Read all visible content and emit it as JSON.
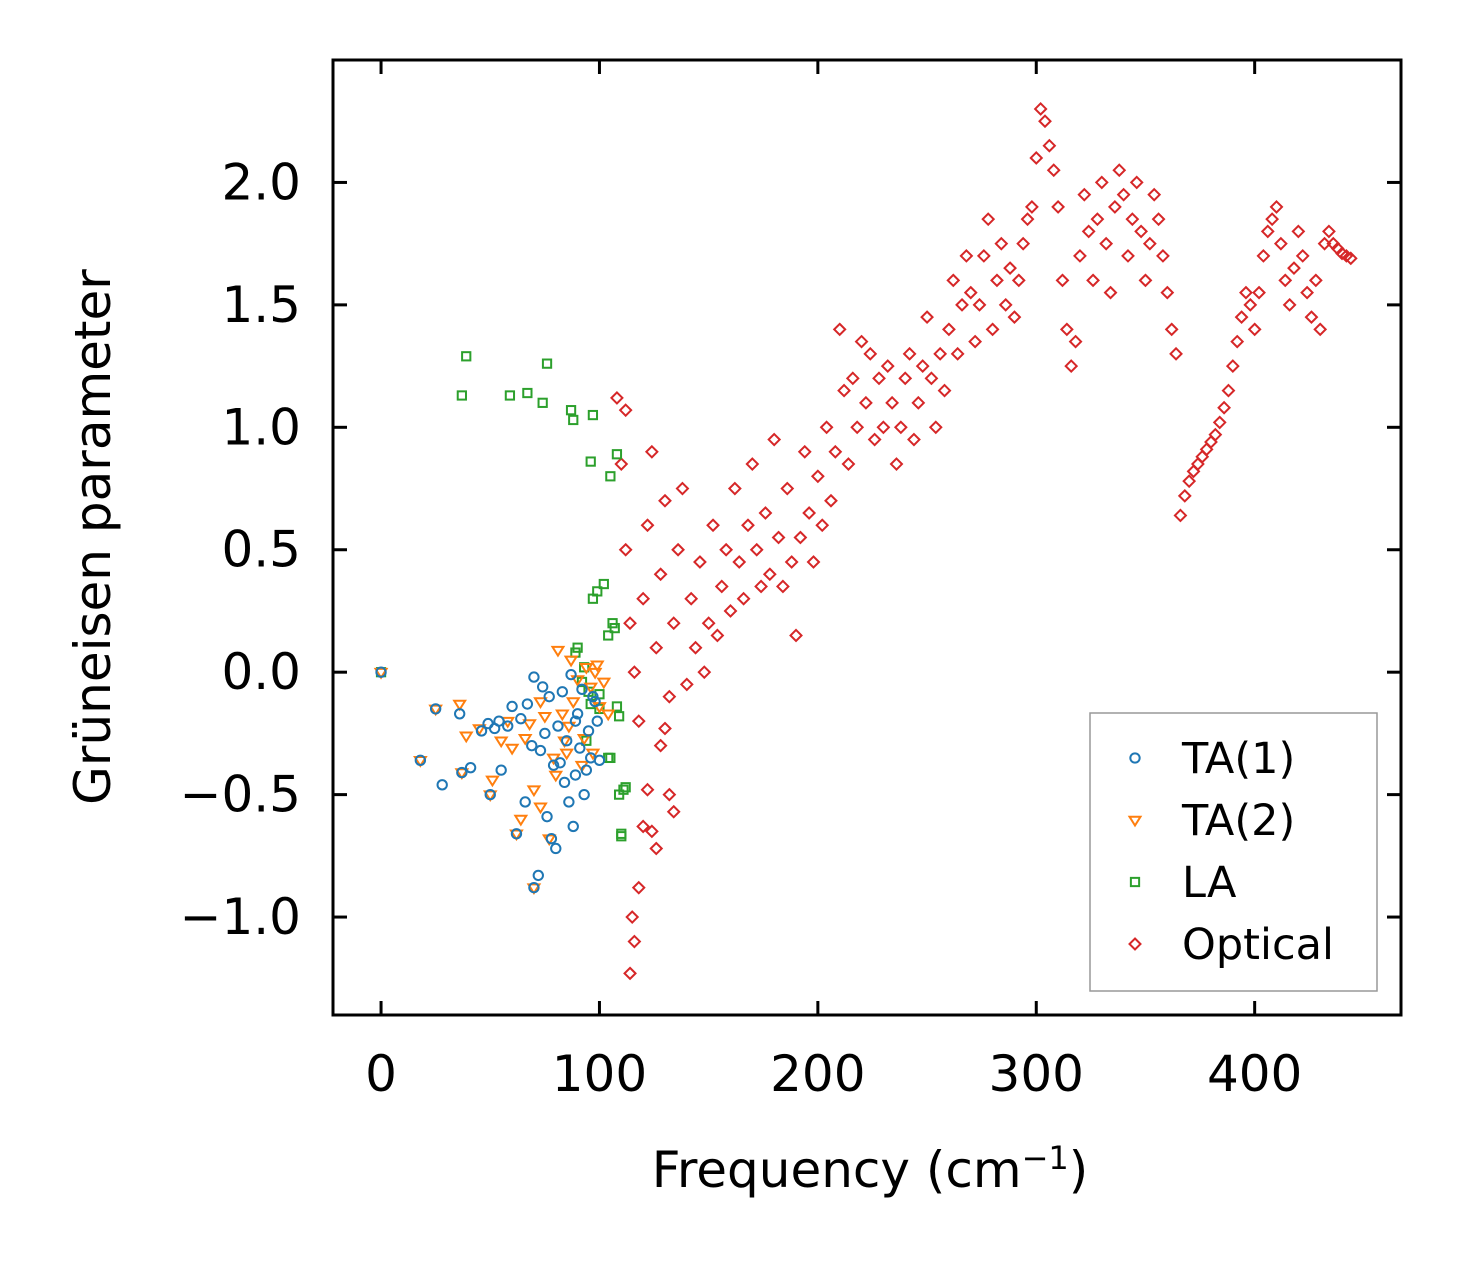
{
  "chart_data": {
    "type": "scatter",
    "title": "",
    "xlabel": "Frequency (cm",
    "xlabel_sup": "−1",
    "xlabel_end": ")",
    "ylabel": "Grüneisen parameter",
    "xlim": [
      -22,
      467
    ],
    "ylim": [
      -1.4,
      2.5
    ],
    "xticks": [
      0,
      100,
      200,
      300,
      400
    ],
    "xtick_labels": [
      "0",
      "100",
      "200",
      "300",
      "400"
    ],
    "yticks": [
      -1.0,
      -0.5,
      0.0,
      0.5,
      1.0,
      1.5,
      2.0
    ],
    "ytick_labels": [
      "−1.0",
      "−0.5",
      "0.0",
      "0.5",
      "1.0",
      "1.5",
      "2.0"
    ],
    "legend_position": "lower-right",
    "series": [
      {
        "name": "TA(1)",
        "marker": "circle",
        "color": "#1f77b4",
        "points": [
          [
            0,
            0.0
          ],
          [
            18,
            -0.36
          ],
          [
            25,
            -0.15
          ],
          [
            28,
            -0.46
          ],
          [
            36,
            -0.17
          ],
          [
            37,
            -0.41
          ],
          [
            41,
            -0.39
          ],
          [
            46,
            -0.24
          ],
          [
            49,
            -0.21
          ],
          [
            50,
            -0.5
          ],
          [
            52,
            -0.23
          ],
          [
            55,
            -0.4
          ],
          [
            58,
            -0.22
          ],
          [
            60,
            -0.14
          ],
          [
            62,
            -0.66
          ],
          [
            64,
            -0.19
          ],
          [
            66,
            -0.53
          ],
          [
            67,
            -0.13
          ],
          [
            69,
            -0.3
          ],
          [
            70,
            -0.02
          ],
          [
            70,
            -0.88
          ],
          [
            72,
            -0.83
          ],
          [
            73,
            -0.32
          ],
          [
            74,
            -0.06
          ],
          [
            75,
            -0.25
          ],
          [
            76,
            -0.59
          ],
          [
            78,
            -0.68
          ],
          [
            79,
            -0.38
          ],
          [
            80,
            -0.72
          ],
          [
            81,
            -0.22
          ],
          [
            82,
            -0.37
          ],
          [
            83,
            -0.08
          ],
          [
            84,
            -0.45
          ],
          [
            85,
            -0.28
          ],
          [
            86,
            -0.53
          ],
          [
            87,
            -0.01
          ],
          [
            88,
            -0.63
          ],
          [
            89,
            -0.42
          ],
          [
            90,
            -0.17
          ],
          [
            91,
            -0.31
          ],
          [
            92,
            -0.07
          ],
          [
            93,
            -0.5
          ],
          [
            94,
            -0.4
          ],
          [
            95,
            -0.24
          ],
          [
            96,
            -0.35
          ],
          [
            97,
            -0.1
          ],
          [
            98,
            -0.12
          ],
          [
            99,
            -0.2
          ],
          [
            100,
            -0.36
          ],
          [
            89,
            -0.2
          ],
          [
            77,
            -0.1
          ],
          [
            54,
            -0.2
          ]
        ]
      },
      {
        "name": "TA(2)",
        "marker": "triangle-down",
        "color": "#ff7f0e",
        "points": [
          [
            0,
            0.0
          ],
          [
            18,
            -0.36
          ],
          [
            25,
            -0.15
          ],
          [
            36,
            -0.13
          ],
          [
            37,
            -0.41
          ],
          [
            39,
            -0.26
          ],
          [
            45,
            -0.23
          ],
          [
            50,
            -0.5
          ],
          [
            51,
            -0.44
          ],
          [
            55,
            -0.28
          ],
          [
            58,
            -0.2
          ],
          [
            60,
            -0.31
          ],
          [
            62,
            -0.66
          ],
          [
            64,
            -0.6
          ],
          [
            66,
            -0.27
          ],
          [
            68,
            -0.21
          ],
          [
            70,
            -0.48
          ],
          [
            70,
            -0.88
          ],
          [
            73,
            -0.55
          ],
          [
            75,
            -0.18
          ],
          [
            77,
            -0.68
          ],
          [
            79,
            -0.35
          ],
          [
            81,
            0.09
          ],
          [
            83,
            -0.17
          ],
          [
            84,
            -0.28
          ],
          [
            86,
            -0.22
          ],
          [
            87,
            0.05
          ],
          [
            88,
            -0.12
          ],
          [
            90,
            -0.03
          ],
          [
            92,
            -0.38
          ],
          [
            93,
            -0.27
          ],
          [
            94,
            0.02
          ],
          [
            96,
            -0.06
          ],
          [
            97,
            -0.33
          ],
          [
            98,
            0.0
          ],
          [
            99,
            0.03
          ],
          [
            100,
            -0.14
          ],
          [
            102,
            -0.04
          ],
          [
            104,
            -0.17
          ],
          [
            85,
            -0.33
          ],
          [
            80,
            -0.42
          ],
          [
            73,
            -0.12
          ]
        ]
      },
      {
        "name": "LA",
        "marker": "square",
        "color": "#2ca02c",
        "points": [
          [
            0,
            0.0
          ],
          [
            37,
            1.13
          ],
          [
            39,
            1.29
          ],
          [
            59,
            1.13
          ],
          [
            67,
            1.14
          ],
          [
            74,
            1.1
          ],
          [
            76,
            1.26
          ],
          [
            87,
            1.07
          ],
          [
            88,
            1.03
          ],
          [
            96,
            0.86
          ],
          [
            97,
            1.05
          ],
          [
            105,
            0.8
          ],
          [
            108,
            0.89
          ],
          [
            89,
            0.08
          ],
          [
            90,
            0.1
          ],
          [
            92,
            -0.04
          ],
          [
            93,
            0.02
          ],
          [
            95,
            -0.08
          ],
          [
            96,
            -0.13
          ],
          [
            97,
            0.3
          ],
          [
            99,
            0.33
          ],
          [
            100,
            -0.15
          ],
          [
            102,
            0.36
          ],
          [
            104,
            -0.35
          ],
          [
            105,
            -0.35
          ],
          [
            106,
            0.2
          ],
          [
            107,
            0.18
          ],
          [
            108,
            -0.14
          ],
          [
            109,
            -0.5
          ],
          [
            110,
            -0.67
          ],
          [
            111,
            -0.48
          ],
          [
            112,
            -0.47
          ],
          [
            109,
            -0.18
          ],
          [
            110,
            -0.66
          ],
          [
            104,
            0.15
          ],
          [
            94,
            -0.28
          ],
          [
            100,
            -0.09
          ]
        ]
      },
      {
        "name": "Optical",
        "marker": "diamond",
        "color": "#d62728",
        "points": [
          [
            108,
            1.12
          ],
          [
            112,
            1.07
          ],
          [
            114,
            -1.23
          ],
          [
            115,
            -1.0
          ],
          [
            116,
            -1.1
          ],
          [
            118,
            -0.88
          ],
          [
            120,
            -0.63
          ],
          [
            122,
            -0.48
          ],
          [
            124,
            -0.65
          ],
          [
            126,
            -0.72
          ],
          [
            128,
            -0.3
          ],
          [
            130,
            -0.23
          ],
          [
            132,
            -0.5
          ],
          [
            134,
            -0.57
          ],
          [
            110,
            0.85
          ],
          [
            112,
            0.5
          ],
          [
            114,
            0.2
          ],
          [
            116,
            0.0
          ],
          [
            118,
            -0.2
          ],
          [
            120,
            0.3
          ],
          [
            122,
            0.6
          ],
          [
            124,
            0.9
          ],
          [
            126,
            0.1
          ],
          [
            128,
            0.4
          ],
          [
            130,
            0.7
          ],
          [
            132,
            -0.1
          ],
          [
            134,
            0.2
          ],
          [
            136,
            0.5
          ],
          [
            138,
            0.75
          ],
          [
            140,
            -0.05
          ],
          [
            142,
            0.3
          ],
          [
            144,
            0.1
          ],
          [
            146,
            0.45
          ],
          [
            148,
            0.0
          ],
          [
            150,
            0.2
          ],
          [
            152,
            0.6
          ],
          [
            154,
            0.15
          ],
          [
            156,
            0.35
          ],
          [
            158,
            0.5
          ],
          [
            160,
            0.25
          ],
          [
            162,
            0.75
          ],
          [
            164,
            0.45
          ],
          [
            166,
            0.3
          ],
          [
            168,
            0.6
          ],
          [
            170,
            0.85
          ],
          [
            172,
            0.5
          ],
          [
            174,
            0.35
          ],
          [
            176,
            0.65
          ],
          [
            178,
            0.4
          ],
          [
            180,
            0.95
          ],
          [
            182,
            0.55
          ],
          [
            184,
            0.35
          ],
          [
            186,
            0.75
          ],
          [
            188,
            0.45
          ],
          [
            190,
            0.15
          ],
          [
            192,
            0.55
          ],
          [
            194,
            0.9
          ],
          [
            196,
            0.65
          ],
          [
            198,
            0.45
          ],
          [
            200,
            0.8
          ],
          [
            202,
            0.6
          ],
          [
            204,
            1.0
          ],
          [
            206,
            0.7
          ],
          [
            208,
            0.9
          ],
          [
            210,
            1.4
          ],
          [
            212,
            1.15
          ],
          [
            214,
            0.85
          ],
          [
            216,
            1.2
          ],
          [
            218,
            1.0
          ],
          [
            220,
            1.35
          ],
          [
            222,
            1.1
          ],
          [
            224,
            1.3
          ],
          [
            226,
            0.95
          ],
          [
            228,
            1.2
          ],
          [
            230,
            1.0
          ],
          [
            232,
            1.25
          ],
          [
            234,
            1.1
          ],
          [
            236,
            0.85
          ],
          [
            238,
            1.0
          ],
          [
            240,
            1.2
          ],
          [
            242,
            1.3
          ],
          [
            244,
            0.95
          ],
          [
            246,
            1.1
          ],
          [
            248,
            1.25
          ],
          [
            250,
            1.45
          ],
          [
            252,
            1.2
          ],
          [
            254,
            1.0
          ],
          [
            256,
            1.3
          ],
          [
            258,
            1.15
          ],
          [
            260,
            1.4
          ],
          [
            262,
            1.6
          ],
          [
            264,
            1.3
          ],
          [
            266,
            1.5
          ],
          [
            268,
            1.7
          ],
          [
            270,
            1.55
          ],
          [
            272,
            1.35
          ],
          [
            274,
            1.5
          ],
          [
            276,
            1.7
          ],
          [
            278,
            1.85
          ],
          [
            280,
            1.4
          ],
          [
            282,
            1.6
          ],
          [
            284,
            1.75
          ],
          [
            286,
            1.5
          ],
          [
            288,
            1.65
          ],
          [
            290,
            1.45
          ],
          [
            292,
            1.6
          ],
          [
            294,
            1.75
          ],
          [
            296,
            1.85
          ],
          [
            298,
            1.9
          ],
          [
            300,
            2.1
          ],
          [
            302,
            2.3
          ],
          [
            304,
            2.25
          ],
          [
            306,
            2.15
          ],
          [
            308,
            2.05
          ],
          [
            310,
            1.9
          ],
          [
            312,
            1.6
          ],
          [
            314,
            1.4
          ],
          [
            316,
            1.25
          ],
          [
            318,
            1.35
          ],
          [
            320,
            1.7
          ],
          [
            322,
            1.95
          ],
          [
            324,
            1.8
          ],
          [
            326,
            1.6
          ],
          [
            328,
            1.85
          ],
          [
            330,
            2.0
          ],
          [
            332,
            1.75
          ],
          [
            334,
            1.55
          ],
          [
            336,
            1.9
          ],
          [
            338,
            2.05
          ],
          [
            340,
            1.95
          ],
          [
            342,
            1.7
          ],
          [
            344,
            1.85
          ],
          [
            346,
            2.0
          ],
          [
            348,
            1.8
          ],
          [
            350,
            1.6
          ],
          [
            352,
            1.75
          ],
          [
            354,
            1.95
          ],
          [
            356,
            1.85
          ],
          [
            358,
            1.7
          ],
          [
            360,
            1.55
          ],
          [
            362,
            1.4
          ],
          [
            364,
            1.3
          ],
          [
            366,
            0.64
          ],
          [
            368,
            0.72
          ],
          [
            370,
            0.78
          ],
          [
            372,
            0.82
          ],
          [
            374,
            0.85
          ],
          [
            376,
            0.88
          ],
          [
            378,
            0.91
          ],
          [
            380,
            0.94
          ],
          [
            382,
            0.97
          ],
          [
            384,
            1.02
          ],
          [
            386,
            1.08
          ],
          [
            388,
            1.15
          ],
          [
            390,
            1.25
          ],
          [
            392,
            1.35
          ],
          [
            394,
            1.45
          ],
          [
            396,
            1.55
          ],
          [
            398,
            1.5
          ],
          [
            400,
            1.4
          ],
          [
            402,
            1.55
          ],
          [
            404,
            1.7
          ],
          [
            406,
            1.8
          ],
          [
            408,
            1.85
          ],
          [
            410,
            1.9
          ],
          [
            412,
            1.75
          ],
          [
            414,
            1.6
          ],
          [
            416,
            1.5
          ],
          [
            418,
            1.65
          ],
          [
            420,
            1.8
          ],
          [
            422,
            1.7
          ],
          [
            424,
            1.55
          ],
          [
            426,
            1.45
          ],
          [
            428,
            1.6
          ],
          [
            430,
            1.4
          ],
          [
            432,
            1.75
          ],
          [
            434,
            1.8
          ],
          [
            436,
            1.75
          ],
          [
            438,
            1.73
          ],
          [
            440,
            1.71
          ],
          [
            442,
            1.7
          ],
          [
            444,
            1.69
          ]
        ]
      }
    ]
  }
}
